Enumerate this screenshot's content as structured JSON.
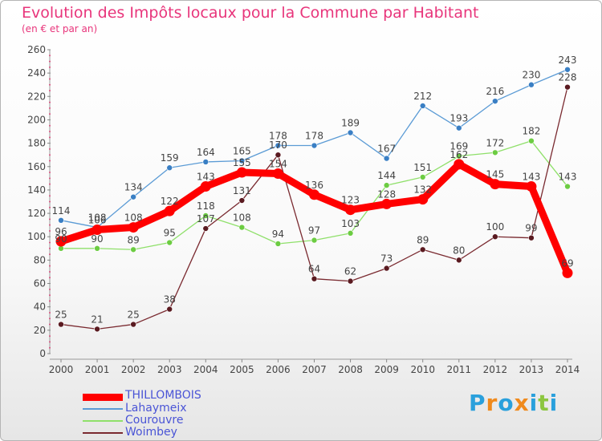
{
  "chart_data": {
    "type": "line",
    "title": "Evolution des Impôts locaux pour la Commune par Habitant",
    "subtitle": "(en € et par an)",
    "xlabel": "",
    "ylabel": "",
    "x": [
      "2000",
      "2001",
      "2002",
      "2003",
      "2004",
      "2005",
      "2006",
      "2007",
      "2008",
      "2009",
      "2010",
      "2011",
      "2012",
      "2013",
      "2014"
    ],
    "ylim": [
      0,
      260
    ],
    "yticks": [
      0,
      20,
      40,
      60,
      80,
      100,
      120,
      140,
      160,
      180,
      200,
      220,
      240,
      260
    ],
    "grid": false,
    "legend_position": "bottom-left",
    "series": [
      {
        "name": "Lahaymeix",
        "color": "#5b9bd5",
        "marker_color": "#3a7fc4",
        "values": [
          114,
          108,
          134,
          159,
          164,
          165,
          178,
          178,
          189,
          167,
          212,
          193,
          216,
          230,
          243
        ]
      },
      {
        "name": "Courouvre",
        "color": "#8fe06a",
        "marker_color": "#6ccc42",
        "values": [
          90,
          90,
          89,
          95,
          118,
          108,
          94,
          97,
          103,
          144,
          151,
          169,
          172,
          182,
          143
        ]
      },
      {
        "name": "Woimbey",
        "color": "#7a2a30",
        "marker_color": "#5a1a20",
        "values": [
          25,
          21,
          25,
          38,
          107,
          131,
          170,
          64,
          62,
          73,
          89,
          80,
          100,
          99,
          228
        ]
      },
      {
        "name": "THILLOMBOIS",
        "color": "#ff0000",
        "marker_color": "#ff0000",
        "values": [
          96,
          106,
          108,
          122,
          143,
          155,
          154,
          136,
          123,
          128,
          132,
          162,
          145,
          143,
          69
        ]
      }
    ],
    "data_labels": [
      {
        "series": "Lahaymeix",
        "labels": [
          "114",
          "108",
          "134",
          "159",
          "164",
          "165",
          "178",
          "178",
          "189",
          "167",
          "212",
          "193",
          "216",
          "230",
          "243"
        ]
      },
      {
        "series": "Courouvre",
        "labels": [
          "90",
          "90",
          "89",
          "95",
          "118",
          "108",
          "94",
          "97",
          "103",
          "144",
          "151",
          "169",
          "172",
          "182",
          "143"
        ]
      },
      {
        "series": "Woimbey",
        "labels": [
          "25",
          "21",
          "25",
          "38",
          "107",
          "131",
          "170",
          "64",
          "62",
          "73",
          "89",
          "80",
          "100",
          "99",
          "228"
        ]
      },
      {
        "series": "THILLOMBOIS",
        "labels": [
          "96",
          "106",
          "108",
          "122",
          "143",
          "155",
          "154",
          "136",
          "123",
          "128",
          "132",
          "162",
          "145",
          "143",
          "69"
        ]
      }
    ]
  },
  "legend": {
    "items": [
      {
        "label": "THILLOMBOIS",
        "color": "#ff0000"
      },
      {
        "label": "Lahaymeix",
        "color": "#5b9bd5"
      },
      {
        "label": "Courouvre",
        "color": "#8fe06a"
      },
      {
        "label": "Woimbey",
        "color": "#7a2a30"
      }
    ]
  },
  "logo": {
    "text": "Proxiti",
    "letters": [
      "P",
      "r",
      "o",
      "x",
      "i",
      "t",
      "i"
    ],
    "colors": [
      "#2aa0dc",
      "#f08a1c",
      "#2aa0dc",
      "#f08a1c",
      "#2aa0dc",
      "#8cc63f",
      "#2aa0dc"
    ]
  }
}
